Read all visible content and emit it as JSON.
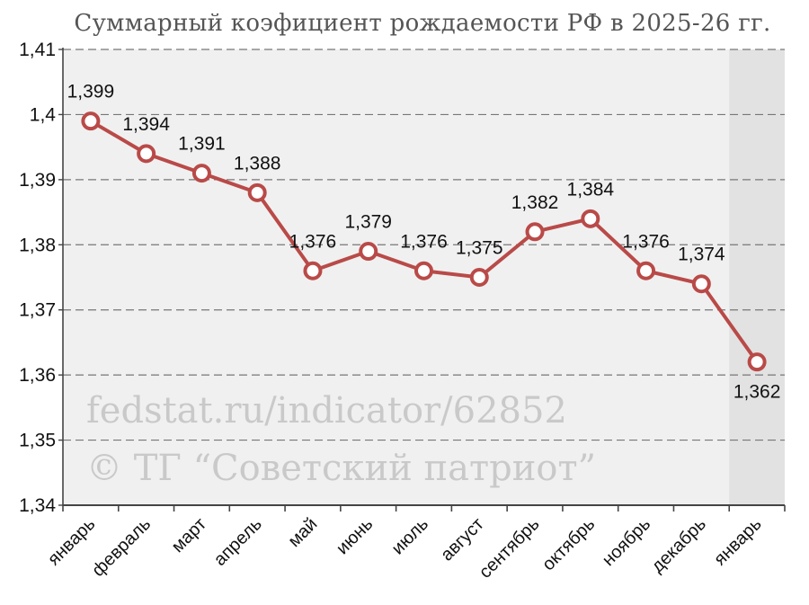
{
  "chart_data": {
    "type": "line",
    "title": "Суммарный коэфициент рождаемости РФ в 2025-26 гг.",
    "categories": [
      "январь",
      "февраль",
      "март",
      "апрель",
      "май",
      "июнь",
      "июль",
      "август",
      "сентябрь",
      "октябрь",
      "ноябрь",
      "декабрь",
      "январь"
    ],
    "values": [
      1.399,
      1.394,
      1.391,
      1.388,
      1.376,
      1.379,
      1.376,
      1.375,
      1.382,
      1.384,
      1.376,
      1.374,
      1.362
    ],
    "data_labels": [
      "1,399",
      "1,394",
      "1,391",
      "1,388",
      "1,376",
      "1,379",
      "1,376",
      "1,375",
      "1,382",
      "1,384",
      "1,376",
      "1,374",
      "1,362"
    ],
    "ylim": [
      1.34,
      1.41
    ],
    "yticks": [
      1.34,
      1.35,
      1.36,
      1.37,
      1.38,
      1.39,
      1.4,
      1.41
    ],
    "ytick_labels": [
      "1,34",
      "1,35",
      "1,36",
      "1,37",
      "1,38",
      "1,39",
      "1,4",
      "1,41"
    ],
    "grid": "horizontal dashed",
    "highlighted_category_index": 12,
    "colors": {
      "line": "#b94a48",
      "marker_fill": "#ffffff",
      "plot_background": "#f0f0f0",
      "highlight_background": "#e2e2e2",
      "grid": "#777777"
    },
    "watermark": [
      "fedstat.ru/indicator/62852",
      "© ТГ “Советский патриот”"
    ]
  }
}
